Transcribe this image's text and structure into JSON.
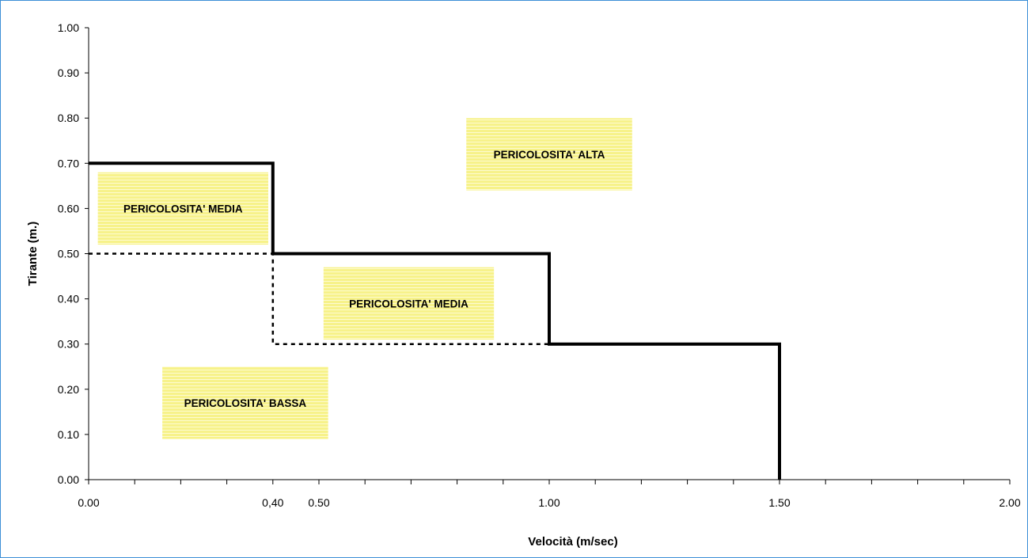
{
  "chart_data": {
    "type": "line",
    "xlabel": "Velocità (m/sec)",
    "ylabel": "Tirante (m.)",
    "xlim": [
      0,
      2
    ],
    "ylim": [
      0,
      1
    ],
    "x_ticks": [
      {
        "value": 0,
        "label": "0.00"
      },
      {
        "value": 0.4,
        "label": "0,40"
      },
      {
        "value": 0.5,
        "label": "0.50"
      },
      {
        "value": 1.0,
        "label": "1.00"
      },
      {
        "value": 1.5,
        "label": "1.50"
      },
      {
        "value": 2.0,
        "label": "2.00"
      }
    ],
    "y_ticks": [
      {
        "value": 0.0,
        "label": "0.00"
      },
      {
        "value": 0.1,
        "label": "0.10"
      },
      {
        "value": 0.2,
        "label": "0.20"
      },
      {
        "value": 0.3,
        "label": "0.30"
      },
      {
        "value": 0.4,
        "label": "0.40"
      },
      {
        "value": 0.5,
        "label": "0.50"
      },
      {
        "value": 0.6,
        "label": "0.60"
      },
      {
        "value": 0.7,
        "label": "0.70"
      },
      {
        "value": 0.8,
        "label": "0.80"
      },
      {
        "value": 0.9,
        "label": "0.90"
      },
      {
        "value": 1.0,
        "label": "1.00"
      }
    ],
    "x_minor_step": 0.1,
    "grid": false,
    "series": [
      {
        "style": "solid",
        "color": "#000000",
        "points": [
          [
            0,
            0.7
          ],
          [
            0.4,
            0.7
          ],
          [
            0.4,
            0.5
          ],
          [
            1.0,
            0.5
          ],
          [
            1.0,
            0.3
          ],
          [
            1.5,
            0.3
          ],
          [
            1.5,
            0.0
          ]
        ]
      },
      {
        "style": "dashed",
        "color": "#000000",
        "points": [
          [
            0,
            0.5
          ],
          [
            0.4,
            0.5
          ],
          [
            0.4,
            0.3
          ],
          [
            1.0,
            0.3
          ]
        ]
      }
    ],
    "annotations": [
      {
        "text": "PERICOLOSITA' ALTA",
        "x0": 0.82,
        "x1": 1.18,
        "y0": 0.64,
        "y1": 0.8
      },
      {
        "text": "PERICOLOSITA' MEDIA",
        "x0": 0.02,
        "x1": 0.39,
        "y0": 0.52,
        "y1": 0.68
      },
      {
        "text": "PERICOLOSITA' MEDIA",
        "x0": 0.51,
        "x1": 0.88,
        "y0": 0.31,
        "y1": 0.47
      },
      {
        "text": "PERICOLOSITA' BASSA",
        "x0": 0.16,
        "x1": 0.52,
        "y0": 0.09,
        "y1": 0.25
      }
    ],
    "annotation_color": "#f7f28a"
  }
}
